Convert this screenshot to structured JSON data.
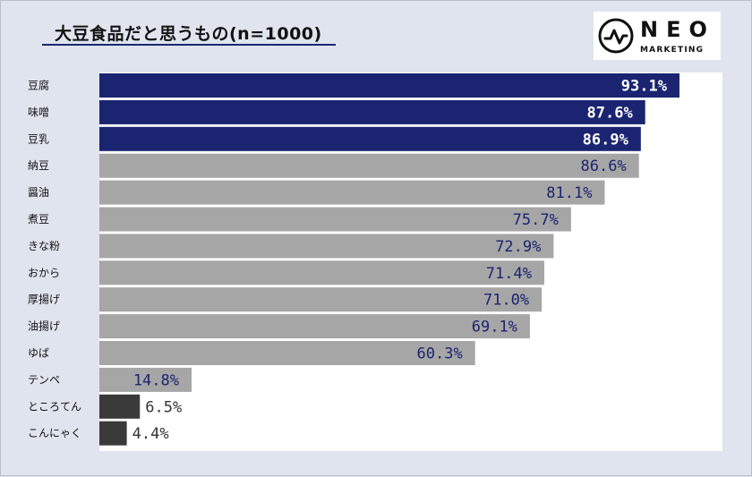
{
  "chart_data": {
    "type": "bar",
    "orientation": "horizontal",
    "title": "大豆食品だと思うもの(n=1000)",
    "categories": [
      "豆腐",
      "味噌",
      "豆乳",
      "納豆",
      "醤油",
      "煮豆",
      "きな粉",
      "おから",
      "厚揚げ",
      "油揚げ",
      "ゆば",
      "テンペ",
      "ところてん",
      "こんにゃく"
    ],
    "values": [
      93.1,
      87.6,
      86.9,
      86.6,
      81.1,
      75.7,
      72.9,
      71.4,
      71.0,
      69.1,
      60.3,
      14.8,
      6.5,
      4.4
    ],
    "value_labels": [
      "93.1%",
      "87.6%",
      "86.9%",
      "86.6%",
      "81.1%",
      "75.7%",
      "72.9%",
      "71.4%",
      "71.0%",
      "69.1%",
      "60.3%",
      "14.8%",
      "6.5%",
      "4.4%"
    ],
    "bar_groups": [
      "top",
      "top",
      "top",
      "mid",
      "mid",
      "mid",
      "mid",
      "mid",
      "mid",
      "mid",
      "mid",
      "mid",
      "low",
      "low"
    ],
    "xlim": [
      0,
      100
    ],
    "grid": false,
    "legend": "none",
    "colors": {
      "top": "#1b2470",
      "mid": "#a6a6a6",
      "low": "#3a3a3a",
      "label_on_bar": "#ffffff",
      "label_dark": "#1b2470",
      "label_low": "#333333"
    }
  },
  "logo": {
    "wordmark": "NEO",
    "subtext": "MARKETING",
    "icon": "pulse-circle-icon"
  }
}
